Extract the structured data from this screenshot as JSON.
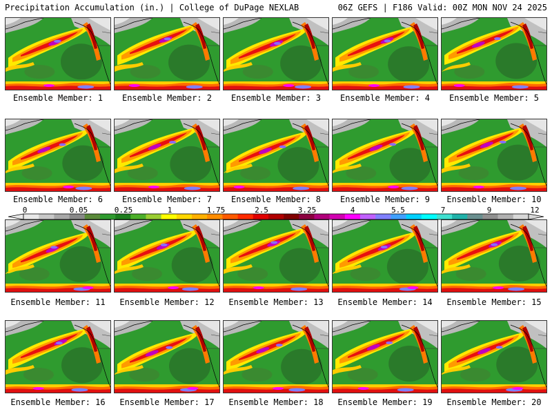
{
  "header": {
    "title": "Precipitation Accumulation (in.) | College of DuPage NEXLAB",
    "run_info": "06Z GEFS | F186 Valid: 00Z MON NOV 24 2025"
  },
  "colorbar": {
    "tick_labels": [
      "0",
      "0.05",
      "0.25",
      "1",
      "1.75",
      "2.5",
      "3.25",
      "4",
      "5.5",
      "7",
      "9",
      "12"
    ],
    "colors": [
      "#e8e8e8",
      "#c8c8c8",
      "#a8a8a8",
      "#888888",
      "#5a8a3a",
      "#2f9b2f",
      "#1e7d1e",
      "#4caf2a",
      "#9acd32",
      "#ffff00",
      "#ffd700",
      "#ffb000",
      "#ff8c00",
      "#ff5a00",
      "#ff2a00",
      "#e00000",
      "#b00000",
      "#800000",
      "#8b0040",
      "#b0007a",
      "#d000b0",
      "#ff00ff",
      "#c060ff",
      "#8080ff",
      "#40a0ff",
      "#00d0ff",
      "#00ffff",
      "#40e0d0",
      "#20b2aa",
      "#6a8f8f",
      "#909090",
      "#b0b0b0",
      "#d8d8d8"
    ]
  },
  "panels": [
    {
      "label": "Ensemble Member: 1"
    },
    {
      "label": "Ensemble Member: 2"
    },
    {
      "label": "Ensemble Member: 3"
    },
    {
      "label": "Ensemble Member: 4"
    },
    {
      "label": "Ensemble Member: 5"
    },
    {
      "label": "Ensemble Member: 6"
    },
    {
      "label": "Ensemble Member: 7"
    },
    {
      "label": "Ensemble Member: 8"
    },
    {
      "label": "Ensemble Member: 9"
    },
    {
      "label": "Ensemble Member: 10"
    },
    {
      "label": "Ensemble Member: 11"
    },
    {
      "label": "Ensemble Member: 12"
    },
    {
      "label": "Ensemble Member: 13"
    },
    {
      "label": "Ensemble Member: 14"
    },
    {
      "label": "Ensemble Member: 15"
    },
    {
      "label": "Ensemble Member: 16"
    },
    {
      "label": "Ensemble Member: 17"
    },
    {
      "label": "Ensemble Member: 18"
    },
    {
      "label": "Ensemble Member: 19"
    },
    {
      "label": "Ensemble Member: 20"
    }
  ]
}
